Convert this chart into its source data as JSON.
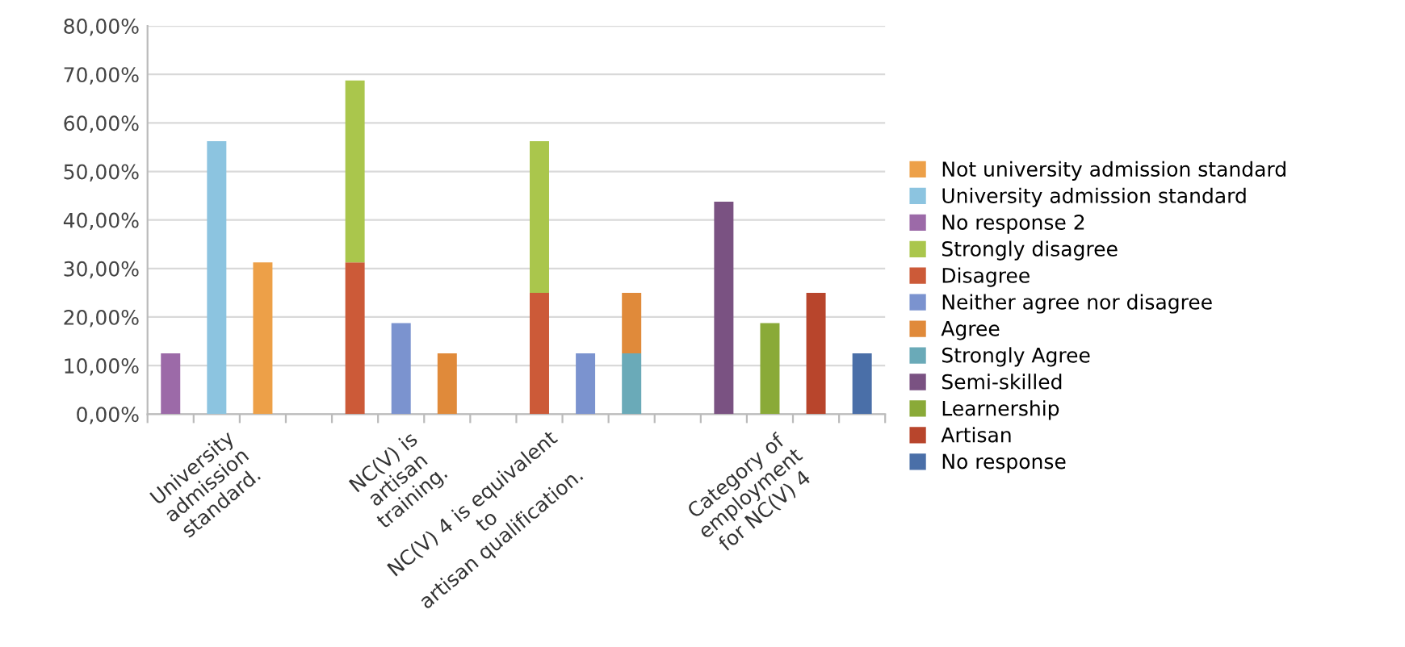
{
  "chart_data": {
    "type": "bar",
    "stacked": true,
    "categories": [
      null,
      "University\nadmission\nstandard.",
      null,
      null,
      null,
      "NC(V) is\nartisan\ntraining.",
      null,
      null,
      "NC(V) 4 is equivalent\nto\nartisan qualification.",
      null,
      null,
      null,
      null,
      "Category of\nemployment\nfor NC(V) 4",
      null,
      null
    ],
    "series": [
      {
        "name": "No response",
        "color": "#4a6fa8",
        "values": [
          null,
          null,
          null,
          null,
          null,
          null,
          null,
          null,
          null,
          null,
          null,
          null,
          null,
          null,
          null,
          12.5
        ]
      },
      {
        "name": "Artisan",
        "color": "#b8452c",
        "values": [
          null,
          null,
          null,
          null,
          null,
          null,
          null,
          null,
          null,
          null,
          null,
          null,
          null,
          null,
          25,
          null
        ]
      },
      {
        "name": "Learnership",
        "color": "#8aaa38",
        "values": [
          null,
          null,
          null,
          null,
          null,
          null,
          null,
          null,
          null,
          null,
          null,
          null,
          null,
          18.75,
          null,
          null
        ]
      },
      {
        "name": "Semi-skilled",
        "color": "#7a5282",
        "values": [
          null,
          null,
          null,
          null,
          null,
          null,
          null,
          null,
          null,
          null,
          null,
          null,
          43.75,
          null,
          null,
          null
        ]
      },
      {
        "name": "Strongly Agree",
        "color": "#6aaab8",
        "values": [
          null,
          null,
          null,
          null,
          null,
          null,
          null,
          null,
          null,
          null,
          12.5,
          null,
          null,
          null,
          null,
          null
        ]
      },
      {
        "name": "Agree",
        "color": "#e08a3a",
        "values": [
          null,
          null,
          null,
          null,
          null,
          null,
          12.5,
          null,
          null,
          null,
          12.5,
          null,
          null,
          null,
          null,
          null
        ]
      },
      {
        "name": "Neither agree nor disagree",
        "color": "#7b93cf",
        "values": [
          null,
          null,
          null,
          null,
          null,
          18.75,
          null,
          null,
          null,
          12.5,
          null,
          null,
          null,
          null,
          null,
          null
        ]
      },
      {
        "name": "Disagree",
        "color": "#cc5a38",
        "values": [
          null,
          null,
          null,
          null,
          31.25,
          null,
          null,
          null,
          25,
          null,
          null,
          null,
          null,
          null,
          null,
          null
        ]
      },
      {
        "name": "Strongly disagree",
        "color": "#aac64c",
        "values": [
          null,
          null,
          null,
          null,
          37.5,
          null,
          null,
          null,
          31.25,
          null,
          null,
          null,
          null,
          null,
          null,
          null
        ]
      },
      {
        "name": "No response 2",
        "color": "#9c6aa8",
        "values": [
          12.5,
          null,
          null,
          null,
          null,
          null,
          null,
          null,
          null,
          null,
          null,
          null,
          null,
          null,
          null,
          null
        ]
      },
      {
        "name": "University admission standard",
        "color": "#8cc4e0",
        "values": [
          null,
          56.25,
          null,
          null,
          null,
          null,
          null,
          null,
          null,
          null,
          null,
          null,
          null,
          null,
          null,
          null
        ]
      },
      {
        "name": "Not university admission standard",
        "color": "#eda048",
        "values": [
          null,
          null,
          31.25,
          null,
          null,
          null,
          null,
          null,
          null,
          null,
          null,
          null,
          null,
          null,
          null,
          null
        ]
      }
    ],
    "ylim": [
      0,
      80
    ],
    "yticks": [
      {
        "value": 0,
        "label": "0,00%"
      },
      {
        "value": 10,
        "label": "10,00%"
      },
      {
        "value": 20,
        "label": "20,00%"
      },
      {
        "value": 30,
        "label": "30,00%"
      },
      {
        "value": 40,
        "label": "40,00%"
      },
      {
        "value": 50,
        "label": "50,00%"
      },
      {
        "value": 60,
        "label": "60,00%"
      },
      {
        "value": 70,
        "label": "70,00%"
      },
      {
        "value": 80,
        "label": "80,00%"
      }
    ],
    "grid": "y",
    "legend": "right"
  }
}
